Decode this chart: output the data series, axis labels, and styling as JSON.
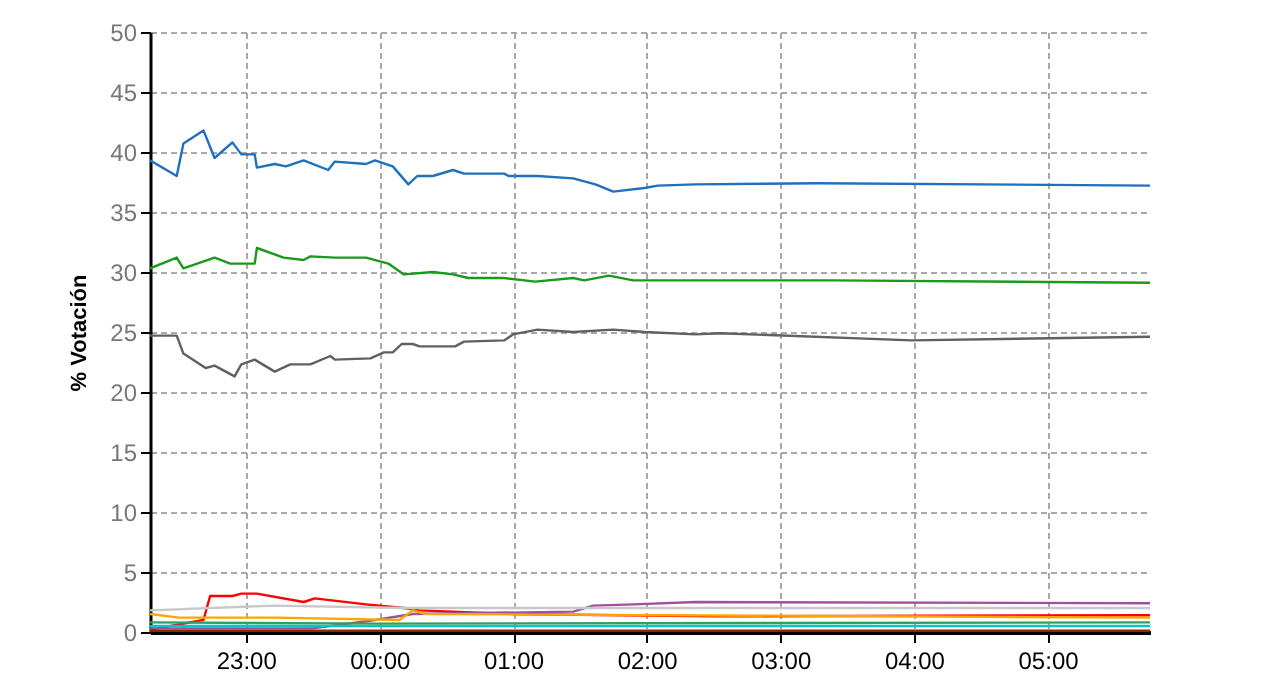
{
  "chart_data": {
    "type": "line",
    "ylabel": "% Votación",
    "xlim": [
      "2000-01-01T22:17",
      "2000-01-02T05:46"
    ],
    "ylim": [
      0,
      50
    ],
    "xticks": [
      {
        "value": "2000-01-01T23:00",
        "label": "23:00"
      },
      {
        "value": "2000-01-02T00:00",
        "label": "00:00"
      },
      {
        "value": "2000-01-02T01:00",
        "label": "01:00"
      },
      {
        "value": "2000-01-02T02:00",
        "label": "02:00"
      },
      {
        "value": "2000-01-02T03:00",
        "label": "03:00"
      },
      {
        "value": "2000-01-02T04:00",
        "label": "04:00"
      },
      {
        "value": "2000-01-02T05:00",
        "label": "05:00"
      }
    ],
    "yticks": [
      0,
      5,
      10,
      15,
      20,
      25,
      30,
      35,
      40,
      45,
      50
    ],
    "grid": true,
    "line_style": "solid",
    "marker": "none",
    "series": [
      {
        "color": "#2070c0",
        "x": [
          "2000-01-01T22:17",
          "2000-01-01T22:29",
          "2000-01-01T22:32",
          "2000-01-01T22:41",
          "2000-01-01T22:46",
          "2000-01-01T22:54",
          "2000-01-01T22:58",
          "2000-01-01T23:04",
          "2000-01-01T23:05",
          "2000-01-01T23:13",
          "2000-01-01T23:18",
          "2000-01-01T23:26",
          "2000-01-01T23:37",
          "2000-01-01T23:40",
          "2000-01-01T23:54",
          "2000-01-01T23:58",
          "2000-01-02T00:06",
          "2000-01-02T00:13",
          "2000-01-02T00:17",
          "2000-01-02T00:24",
          "2000-01-02T00:33",
          "2000-01-02T00:38",
          "2000-01-02T00:56",
          "2000-01-02T00:58",
          "2000-01-02T01:11",
          "2000-01-02T01:27",
          "2000-01-02T01:37",
          "2000-01-02T01:45",
          "2000-01-02T01:59",
          "2000-01-02T02:05",
          "2000-01-02T02:22",
          "2000-01-02T03:17",
          "2000-01-02T05:46"
        ],
        "values": [
          39.3,
          38.0,
          40.7,
          41.8,
          39.5,
          40.8,
          39.8,
          39.8,
          38.7,
          39.0,
          38.8,
          39.3,
          38.5,
          39.2,
          39.0,
          39.3,
          38.8,
          37.3,
          38.0,
          38.0,
          38.5,
          38.2,
          38.2,
          38.0,
          38.0,
          37.8,
          37.3,
          36.7,
          37.0,
          37.2,
          37.3,
          37.4,
          37.2
        ]
      },
      {
        "color": "#1a9a1a",
        "x": [
          "2000-01-01T22:17",
          "2000-01-01T22:29",
          "2000-01-01T22:32",
          "2000-01-01T22:46",
          "2000-01-01T22:53",
          "2000-01-01T23:04",
          "2000-01-01T23:05",
          "2000-01-01T23:17",
          "2000-01-01T23:26",
          "2000-01-01T23:29",
          "2000-01-01T23:40",
          "2000-01-01T23:54",
          "2000-01-02T00:04",
          "2000-01-02T00:11",
          "2000-01-02T00:24",
          "2000-01-02T00:33",
          "2000-01-02T00:40",
          "2000-01-02T00:56",
          "2000-01-02T01:10",
          "2000-01-02T01:27",
          "2000-01-02T01:32",
          "2000-01-02T01:43",
          "2000-01-02T01:54",
          "2000-01-02T02:22",
          "2000-01-02T03:24",
          "2000-01-02T05:46"
        ],
        "values": [
          30.3,
          31.2,
          30.3,
          31.2,
          30.7,
          30.7,
          32.0,
          31.2,
          31.0,
          31.3,
          31.2,
          31.2,
          30.7,
          29.8,
          30.0,
          29.8,
          29.5,
          29.5,
          29.2,
          29.5,
          29.3,
          29.7,
          29.3,
          29.3,
          29.3,
          29.1
        ]
      },
      {
        "color": "#606060",
        "x": [
          "2000-01-01T22:17",
          "2000-01-01T22:29",
          "2000-01-01T22:32",
          "2000-01-01T22:42",
          "2000-01-01T22:46",
          "2000-01-01T22:55",
          "2000-01-01T22:58",
          "2000-01-01T23:04",
          "2000-01-01T23:13",
          "2000-01-01T23:20",
          "2000-01-01T23:29",
          "2000-01-01T23:38",
          "2000-01-01T23:40",
          "2000-01-01T23:56",
          "2000-01-02T00:02",
          "2000-01-02T00:06",
          "2000-01-02T00:10",
          "2000-01-02T00:15",
          "2000-01-02T00:18",
          "2000-01-02T00:34",
          "2000-01-02T00:38",
          "2000-01-02T00:56",
          "2000-01-02T01:00",
          "2000-01-02T01:11",
          "2000-01-02T01:27",
          "2000-01-02T01:45",
          "2000-01-02T01:59",
          "2000-01-02T02:22",
          "2000-01-02T02:33",
          "2000-01-02T03:59",
          "2000-01-02T05:46"
        ],
        "values": [
          24.7,
          24.7,
          23.2,
          22.0,
          22.2,
          21.3,
          22.3,
          22.7,
          21.7,
          22.3,
          22.3,
          23.0,
          22.7,
          22.8,
          23.3,
          23.3,
          24.0,
          24.0,
          23.8,
          23.8,
          24.2,
          24.3,
          24.8,
          25.2,
          25.0,
          25.2,
          25.0,
          24.8,
          24.9,
          24.3,
          24.6
        ]
      },
      {
        "color": "#ff0000",
        "x": [
          "2000-01-01T22:17",
          "2000-01-01T22:41",
          "2000-01-01T22:44",
          "2000-01-01T22:54",
          "2000-01-01T22:58",
          "2000-01-01T23:05",
          "2000-01-01T23:26",
          "2000-01-01T23:31",
          "2000-01-01T23:54",
          "2000-01-02T00:11",
          "2000-01-02T00:18",
          "2000-01-02T01:00",
          "2000-01-02T02:30",
          "2000-01-02T05:46"
        ],
        "values": [
          0.2,
          1.0,
          3.0,
          3.0,
          3.2,
          3.2,
          2.5,
          2.8,
          2.3,
          2.0,
          1.8,
          1.5,
          1.3,
          1.4
        ]
      },
      {
        "color": "#a0509f",
        "x": [
          "2000-01-01T22:17",
          "2000-01-01T23:30",
          "2000-01-01T23:58",
          "2000-01-02T00:15",
          "2000-01-02T01:27",
          "2000-01-02T01:36",
          "2000-01-02T01:54",
          "2000-01-02T02:22",
          "2000-01-02T05:46"
        ],
        "values": [
          0.3,
          0.3,
          1.0,
          1.5,
          1.7,
          2.2,
          2.3,
          2.5,
          2.4
        ]
      },
      {
        "color": "#c8c8c8",
        "x": [
          "2000-01-01T22:17",
          "2000-01-01T23:13",
          "2000-01-02T00:12",
          "2000-01-02T05:46"
        ],
        "values": [
          1.8,
          2.2,
          2.0,
          2.0
        ]
      },
      {
        "color": "#ffa500",
        "x": [
          "2000-01-01T22:17",
          "2000-01-01T22:30",
          "2000-01-01T23:13",
          "2000-01-02T00:09",
          "2000-01-02T00:15",
          "2000-01-02T00:21",
          "2000-01-02T05:46"
        ],
        "values": [
          1.5,
          1.2,
          1.2,
          1.0,
          1.8,
          1.5,
          1.2
        ]
      },
      {
        "color": "#00c8c8",
        "x": [
          "2000-01-01T22:17",
          "2000-01-02T05:46"
        ],
        "values": [
          0.5,
          0.5
        ]
      },
      {
        "color": "#30a060",
        "x": [
          "2000-01-01T22:17",
          "2000-01-02T00:00",
          "2000-01-02T05:46"
        ],
        "values": [
          0.8,
          0.7,
          0.8
        ]
      },
      {
        "color": "#8b2500",
        "x": [
          "2000-01-01T22:17",
          "2000-01-02T05:46"
        ],
        "values": [
          0.1,
          0.1
        ]
      }
    ]
  }
}
